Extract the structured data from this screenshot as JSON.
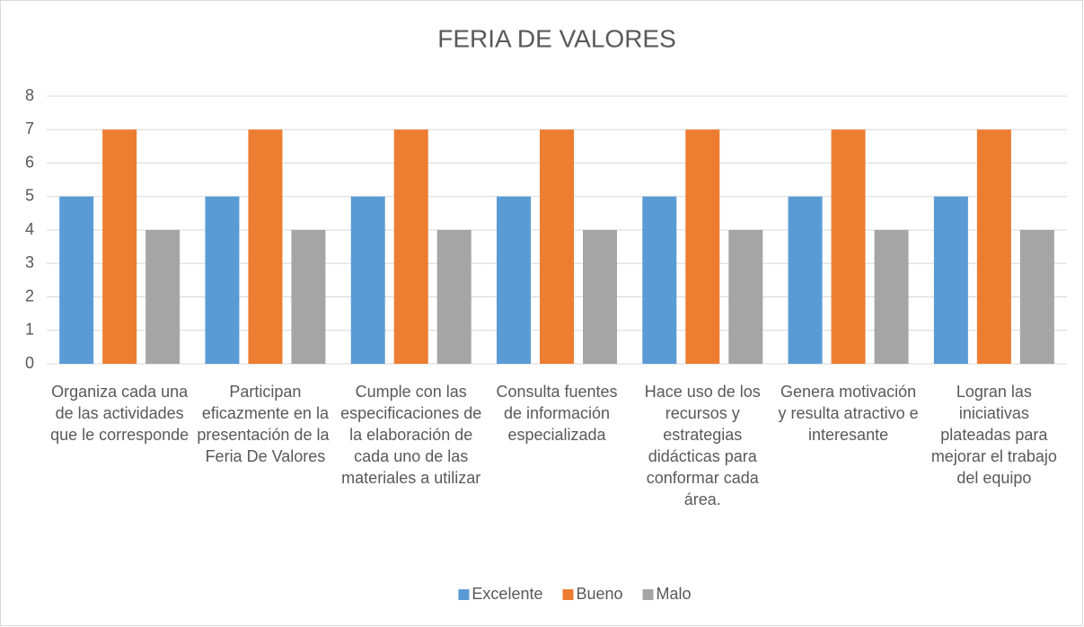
{
  "chart_data": {
    "type": "bar",
    "title": "FERIA DE VALORES",
    "categories": [
      "Organiza cada una de las actividades que le corresponde",
      "Participan eficazmente en la presentación de la  Feria De Valores",
      "Cumple con las especificaciones de la elaboración de cada uno de las materiales a utilizar",
      "Consulta fuentes de información especializada",
      "Hace uso de los recursos y estrategias didácticas para conformar cada área.",
      "Genera motivación y resulta atractivo e interesante",
      "Logran las iniciativas plateadas para mejorar el trabajo del equipo"
    ],
    "series": [
      {
        "name": "Excelente",
        "color": "#5b9bd5",
        "values": [
          5,
          5,
          5,
          5,
          5,
          5,
          5
        ]
      },
      {
        "name": "Bueno",
        "color": "#ed7d31",
        "values": [
          7,
          7,
          7,
          7,
          7,
          7,
          7
        ]
      },
      {
        "name": "Malo",
        "color": "#a5a5a5",
        "values": [
          4,
          4,
          4,
          4,
          4,
          4,
          4
        ]
      }
    ],
    "ylim": [
      0,
      8
    ],
    "yticks": [
      0,
      1,
      2,
      3,
      4,
      5,
      6,
      7,
      8
    ],
    "grid": true,
    "legend": "bottom"
  }
}
